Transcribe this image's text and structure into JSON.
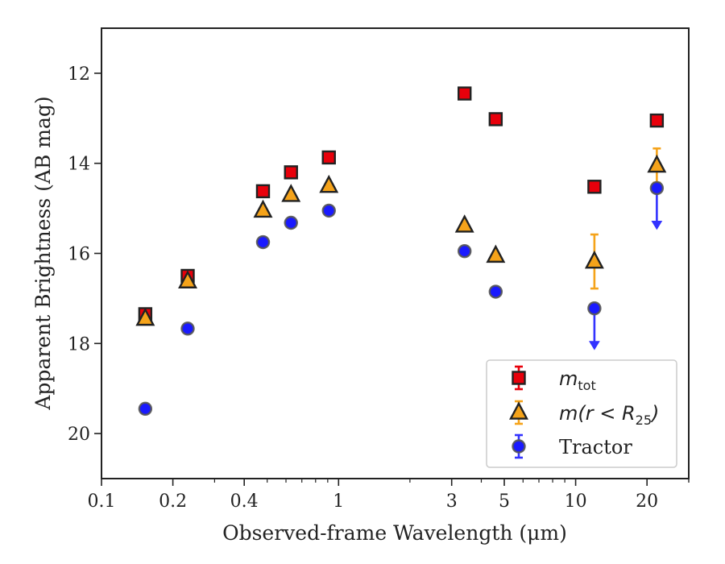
{
  "chart_data": {
    "type": "scatter",
    "xlabel": "Observed-frame Wavelength (μm)",
    "ylabel": "Apparent Brightness (AB mag)",
    "xscale": "log",
    "xlim": [
      0.1,
      30
    ],
    "ylim": [
      21.0,
      11.0
    ],
    "y_inverted": true,
    "x_tick_labels": [
      "0.1",
      "0.2",
      "0.4",
      "1",
      "3",
      "5",
      "10",
      "20"
    ],
    "x_ticks": [
      0.1,
      0.2,
      0.4,
      1,
      3,
      5,
      10,
      20
    ],
    "y_tick_labels": [
      "12",
      "14",
      "16",
      "18",
      "20"
    ],
    "y_ticks": [
      12,
      14,
      16,
      18,
      20
    ],
    "grid": false,
    "legend_position": "lower-right",
    "series": [
      {
        "name": "m_tot",
        "marker": "square",
        "color": "#e8000b",
        "errcolor": "#e8000b",
        "points": [
          {
            "x": 0.153,
            "y": 17.35,
            "err": 0.12
          },
          {
            "x": 0.231,
            "y": 16.5,
            "err": 0.05
          },
          {
            "x": 0.48,
            "y": 14.62,
            "err": 0.03
          },
          {
            "x": 0.63,
            "y": 14.2,
            "err": 0.03
          },
          {
            "x": 0.91,
            "y": 13.87,
            "err": 0.03
          },
          {
            "x": 3.4,
            "y": 12.45,
            "err": 0.03
          },
          {
            "x": 4.6,
            "y": 13.02,
            "err": 0.03
          },
          {
            "x": 12.0,
            "y": 14.52,
            "err": 0.03
          },
          {
            "x": 22.0,
            "y": 13.05,
            "err": 0.03
          }
        ]
      },
      {
        "name": "m(r<R25)",
        "marker": "triangle",
        "color": "#f5a31a",
        "errcolor": "#f5a31a",
        "points": [
          {
            "x": 0.153,
            "y": 17.45,
            "err": 0.05
          },
          {
            "x": 0.231,
            "y": 16.62,
            "err": 0.05
          },
          {
            "x": 0.48,
            "y": 15.05,
            "err": 0.03
          },
          {
            "x": 0.63,
            "y": 14.7,
            "err": 0.03
          },
          {
            "x": 0.91,
            "y": 14.5,
            "err": 0.03
          },
          {
            "x": 3.4,
            "y": 15.38,
            "err": 0.03
          },
          {
            "x": 4.6,
            "y": 16.05,
            "err": 0.03
          },
          {
            "x": 12.0,
            "y": 16.18,
            "err": 0.6
          },
          {
            "x": 22.0,
            "y": 14.05,
            "err": 0.38
          }
        ]
      },
      {
        "name": "Tractor",
        "marker": "circle",
        "color": "#1a1aff",
        "errcolor": "#3333ff",
        "points": [
          {
            "x": 0.153,
            "y": 19.45,
            "err": 0.03
          },
          {
            "x": 0.231,
            "y": 17.67,
            "err": 0.03
          },
          {
            "x": 0.48,
            "y": 15.75,
            "err": 0.03
          },
          {
            "x": 0.63,
            "y": 15.32,
            "err": 0.03
          },
          {
            "x": 0.91,
            "y": 15.05,
            "err": 0.03
          },
          {
            "x": 3.4,
            "y": 15.95,
            "err": 0.03
          },
          {
            "x": 4.6,
            "y": 16.85,
            "err": 0.03
          },
          {
            "x": 12.0,
            "y": 17.22,
            "err": 0.0,
            "upper_limit": true
          },
          {
            "x": 22.0,
            "y": 14.55,
            "err": 0.0,
            "upper_limit": true
          }
        ]
      }
    ],
    "legend": {
      "entries": [
        {
          "label_main": "m",
          "label_sub": "tot",
          "series": 0
        },
        {
          "label_main": "m(r < R",
          "label_sub": "25",
          "label_tail": ")",
          "series": 1
        },
        {
          "label_main": "Tractor",
          "series": 2
        }
      ]
    }
  }
}
